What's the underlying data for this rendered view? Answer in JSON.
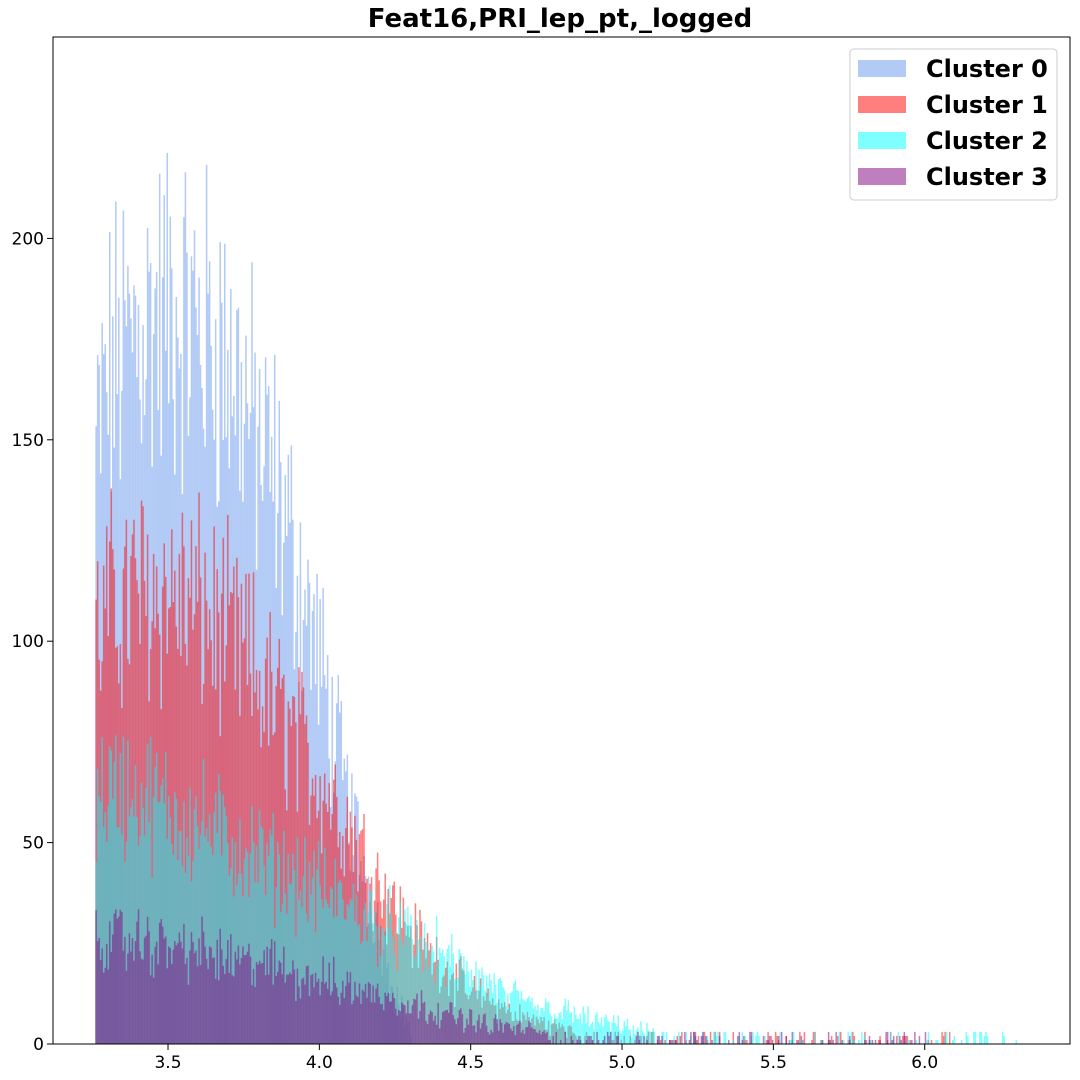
{
  "chart_data": {
    "type": "histogram",
    "title": "Feat16,PRI_lep_pt,_logged",
    "xlabel": "",
    "ylabel": "",
    "xlim": [
      3.12,
      6.48
    ],
    "ylim": [
      0,
      250
    ],
    "x_ticks": [
      3.5,
      4.0,
      4.5,
      5.0,
      5.5,
      6.0
    ],
    "x_tick_labels": [
      "3.5",
      "4.0",
      "4.5",
      "5.0",
      "5.5",
      "6.0"
    ],
    "y_ticks": [
      0,
      50,
      100,
      150,
      200
    ],
    "y_tick_labels": [
      "0",
      "50",
      "100",
      "150",
      "200"
    ],
    "grid": false,
    "legend_position": "top-right",
    "overlay": true,
    "alpha": 0.5,
    "series": [
      {
        "name": "Cluster 0",
        "color": "#6495ed",
        "x": [
          3.26,
          3.3,
          3.35,
          3.4,
          3.45,
          3.5,
          3.55,
          3.6,
          3.65,
          3.7,
          3.75,
          3.8,
          3.85,
          3.9,
          3.95,
          4.0,
          4.05,
          4.1,
          4.15,
          4.2,
          4.25,
          4.3
        ],
        "values": [
          148,
          165,
          172,
          178,
          180,
          182,
          180,
          178,
          175,
          170,
          160,
          148,
          140,
          125,
          110,
          95,
          75,
          58,
          42,
          28,
          12,
          4
        ]
      },
      {
        "name": "Cluster 1",
        "color": "#ff0000",
        "x": [
          3.26,
          3.3,
          3.35,
          3.4,
          3.45,
          3.5,
          3.55,
          3.6,
          3.65,
          3.7,
          3.75,
          3.8,
          3.85,
          3.9,
          3.95,
          4.0,
          4.05,
          4.1,
          4.15,
          4.2,
          4.25,
          4.3,
          4.35,
          4.4,
          4.45,
          4.5,
          4.55,
          4.6,
          4.65,
          4.7,
          4.75,
          4.8,
          4.85,
          4.9,
          4.95,
          5.0,
          5.1,
          5.2,
          5.3,
          5.4,
          5.5,
          5.6,
          5.8,
          6.0,
          6.1
        ],
        "values": [
          100,
          108,
          110,
          112,
          112,
          112,
          110,
          108,
          104,
          100,
          96,
          90,
          84,
          78,
          72,
          66,
          60,
          54,
          46,
          40,
          34,
          28,
          24,
          20,
          16,
          13,
          11,
          9,
          7,
          6,
          5,
          4,
          3,
          2.5,
          2,
          1.5,
          1,
          0.8,
          0.6,
          0.5,
          0.4,
          0.3,
          0.2,
          0.1,
          0.05
        ]
      },
      {
        "name": "Cluster 2",
        "color": "#00ffff",
        "x": [
          3.26,
          3.3,
          3.35,
          3.4,
          3.45,
          3.5,
          3.55,
          3.6,
          3.65,
          3.7,
          3.75,
          3.8,
          3.85,
          3.9,
          3.95,
          4.0,
          4.05,
          4.1,
          4.15,
          4.2,
          4.25,
          4.3,
          4.35,
          4.4,
          4.45,
          4.5,
          4.55,
          4.6,
          4.65,
          4.7,
          4.75,
          4.8,
          4.85,
          4.9,
          4.95,
          5.0,
          5.1,
          5.2,
          5.3,
          5.4,
          5.5,
          5.6,
          5.8,
          6.0,
          6.3
        ],
        "values": [
          62,
          64,
          63,
          62,
          60,
          58,
          56,
          55,
          53,
          50,
          48,
          46,
          44,
          42,
          40,
          38,
          36,
          34,
          32,
          30,
          28,
          26,
          24,
          22,
          19,
          17,
          15,
          13,
          11,
          10,
          9,
          8,
          7,
          6,
          5,
          4,
          3,
          2,
          1.5,
          1,
          0.8,
          0.5,
          0.3,
          0.2,
          0.1
        ]
      },
      {
        "name": "Cluster 3",
        "color": "#800080",
        "x": [
          3.26,
          3.3,
          3.35,
          3.4,
          3.45,
          3.5,
          3.55,
          3.6,
          3.65,
          3.7,
          3.75,
          3.8,
          3.85,
          3.9,
          3.95,
          4.0,
          4.05,
          4.1,
          4.15,
          4.2,
          4.25,
          4.3,
          4.35,
          4.4,
          4.45,
          4.5,
          4.55,
          4.6,
          4.65,
          4.7,
          4.75,
          4.8,
          4.85,
          4.9,
          4.95,
          5.0,
          5.1,
          5.2,
          5.3,
          5.4,
          5.5,
          5.6,
          5.8,
          6.0
        ],
        "values": [
          25,
          26,
          26,
          25,
          25,
          24,
          24,
          23,
          22,
          21,
          20,
          20,
          19,
          18,
          17,
          16,
          15,
          14,
          13,
          12,
          11,
          10,
          9,
          8,
          7,
          6,
          5,
          4.5,
          4,
          3.5,
          3,
          2.5,
          2,
          1.8,
          1.5,
          1.2,
          0.8,
          0.6,
          0.4,
          0.3,
          0.2,
          0.15,
          0.1,
          0.05
        ]
      }
    ]
  }
}
